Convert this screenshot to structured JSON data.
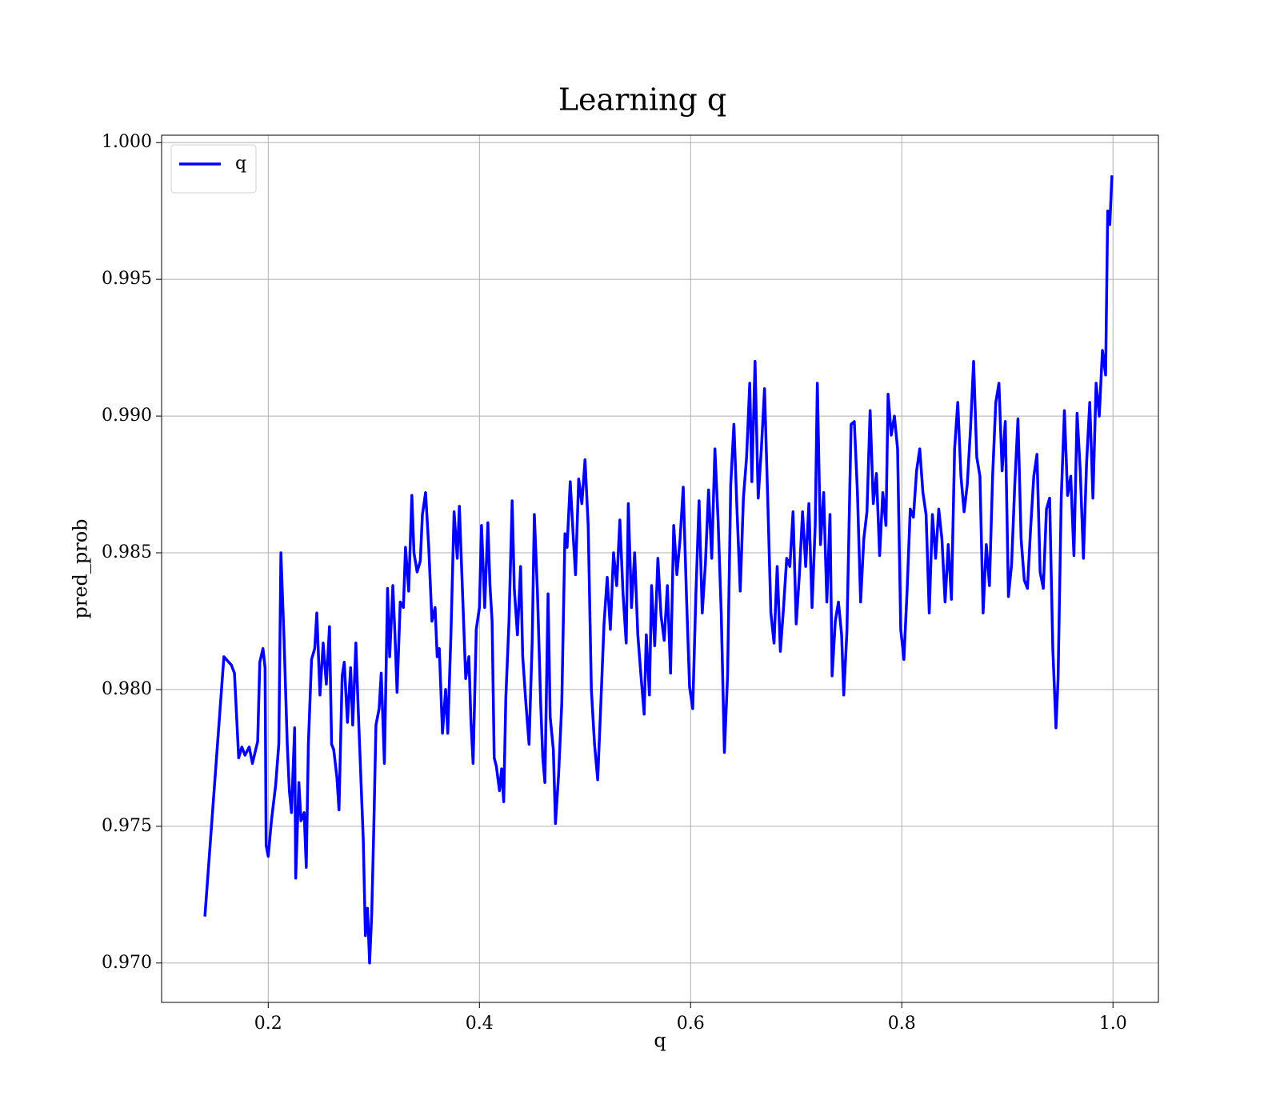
{
  "chart_data": {
    "type": "line",
    "title": "Learning q",
    "xlabel": "q",
    "ylabel": "pred_prob",
    "x": [
      0.14,
      0.158,
      0.165,
      0.168,
      0.172,
      0.175,
      0.178,
      0.182,
      0.185,
      0.19,
      0.192,
      0.195,
      0.197,
      0.198,
      0.2,
      0.203,
      0.207,
      0.21,
      0.212,
      0.215,
      0.218,
      0.22,
      0.222,
      0.225,
      0.226,
      0.229,
      0.231,
      0.234,
      0.236,
      0.238,
      0.241,
      0.244,
      0.246,
      0.249,
      0.252,
      0.255,
      0.258,
      0.26,
      0.262,
      0.265,
      0.267,
      0.27,
      0.272,
      0.275,
      0.278,
      0.28,
      0.283,
      0.285,
      0.288,
      0.29,
      0.292,
      0.294,
      0.296,
      0.298,
      0.3,
      0.302,
      0.305,
      0.307,
      0.31,
      0.313,
      0.315,
      0.318,
      0.32,
      0.322,
      0.325,
      0.328,
      0.33,
      0.333,
      0.336,
      0.338,
      0.341,
      0.344,
      0.346,
      0.349,
      0.352,
      0.355,
      0.358,
      0.36,
      0.362,
      0.365,
      0.368,
      0.37,
      0.373,
      0.376,
      0.379,
      0.381,
      0.385,
      0.387,
      0.39,
      0.392,
      0.394,
      0.397,
      0.4,
      0.402,
      0.405,
      0.408,
      0.41,
      0.412,
      0.414,
      0.416,
      0.419,
      0.421,
      0.423,
      0.425,
      0.428,
      0.431,
      0.433,
      0.436,
      0.439,
      0.441,
      0.444,
      0.447,
      0.45,
      0.452,
      0.455,
      0.458,
      0.46,
      0.462,
      0.465,
      0.467,
      0.47,
      0.472,
      0.475,
      0.478,
      0.481,
      0.483,
      0.486,
      0.489,
      0.491,
      0.494,
      0.497,
      0.5,
      0.503,
      0.506,
      0.509,
      0.512,
      0.515,
      0.518,
      0.521,
      0.524,
      0.527,
      0.53,
      0.533,
      0.536,
      0.539,
      0.541,
      0.544,
      0.547,
      0.55,
      0.553,
      0.556,
      0.558,
      0.561,
      0.563,
      0.566,
      0.569,
      0.572,
      0.575,
      0.578,
      0.581,
      0.584,
      0.587,
      0.59,
      0.593,
      0.596,
      0.599,
      0.602,
      0.605,
      0.608,
      0.611,
      0.614,
      0.617,
      0.62,
      0.623,
      0.626,
      0.629,
      0.632,
      0.635,
      0.638,
      0.641,
      0.644,
      0.647,
      0.65,
      0.653,
      0.656,
      0.658,
      0.661,
      0.664,
      0.667,
      0.67,
      0.673,
      0.676,
      0.679,
      0.682,
      0.685,
      0.688,
      0.691,
      0.694,
      0.697,
      0.7,
      0.703,
      0.706,
      0.709,
      0.712,
      0.715,
      0.718,
      0.72,
      0.723,
      0.726,
      0.729,
      0.732,
      0.734,
      0.737,
      0.74,
      0.743,
      0.745,
      0.748,
      0.752,
      0.755,
      0.758,
      0.761,
      0.764,
      0.767,
      0.77,
      0.773,
      0.776,
      0.779,
      0.782,
      0.785,
      0.787,
      0.79,
      0.793,
      0.796,
      0.799,
      0.802,
      0.805,
      0.808,
      0.811,
      0.814,
      0.817,
      0.82,
      0.823,
      0.826,
      0.829,
      0.832,
      0.835,
      0.838,
      0.841,
      0.844,
      0.847,
      0.85,
      0.853,
      0.856,
      0.859,
      0.862,
      0.865,
      0.868,
      0.871,
      0.874,
      0.877,
      0.88,
      0.883,
      0.886,
      0.889,
      0.892,
      0.895,
      0.898,
      0.901,
      0.904,
      0.907,
      0.91,
      0.913,
      0.916,
      0.919,
      0.922,
      0.925,
      0.928,
      0.931,
      0.934,
      0.937,
      0.94,
      0.943,
      0.946,
      0.948,
      0.951,
      0.954,
      0.957,
      0.96,
      0.963,
      0.966,
      0.969,
      0.972,
      0.975,
      0.978,
      0.981,
      0.984,
      0.987,
      0.99,
      0.993,
      0.995,
      0.997,
      0.999
    ],
    "series": [
      {
        "name": "q",
        "color": "#0000ff",
        "values": [
          0.9717,
          0.9812,
          0.9809,
          0.9806,
          0.9775,
          0.9779,
          0.9776,
          0.9779,
          0.9773,
          0.9781,
          0.981,
          0.9815,
          0.9808,
          0.9743,
          0.9739,
          0.9752,
          0.9765,
          0.978,
          0.985,
          0.9818,
          0.978,
          0.9763,
          0.9755,
          0.9786,
          0.9731,
          0.9766,
          0.9752,
          0.9755,
          0.9735,
          0.978,
          0.9811,
          0.9815,
          0.9828,
          0.9798,
          0.9817,
          0.9802,
          0.9823,
          0.978,
          0.9778,
          0.9768,
          0.9756,
          0.9805,
          0.981,
          0.9788,
          0.9808,
          0.9787,
          0.9817,
          0.9795,
          0.9765,
          0.9745,
          0.971,
          0.972,
          0.97,
          0.9718,
          0.975,
          0.9787,
          0.9793,
          0.9806,
          0.9773,
          0.9837,
          0.9812,
          0.9838,
          0.982,
          0.9799,
          0.9832,
          0.983,
          0.9852,
          0.9836,
          0.9871,
          0.985,
          0.9843,
          0.9847,
          0.9864,
          0.9872,
          0.9852,
          0.9825,
          0.983,
          0.9812,
          0.9815,
          0.9784,
          0.98,
          0.9784,
          0.982,
          0.9865,
          0.9848,
          0.9867,
          0.9825,
          0.9804,
          0.9812,
          0.9788,
          0.9773,
          0.9822,
          0.983,
          0.986,
          0.983,
          0.9861,
          0.9838,
          0.9825,
          0.9775,
          0.9772,
          0.9763,
          0.9771,
          0.9759,
          0.9797,
          0.9825,
          0.9869,
          0.9837,
          0.982,
          0.9845,
          0.9812,
          0.9795,
          0.978,
          0.9818,
          0.9864,
          0.9835,
          0.9795,
          0.9775,
          0.9766,
          0.9835,
          0.979,
          0.9778,
          0.9751,
          0.9769,
          0.9795,
          0.9857,
          0.9852,
          0.9876,
          0.9855,
          0.9842,
          0.9877,
          0.9868,
          0.9884,
          0.986,
          0.98,
          0.978,
          0.9767,
          0.9795,
          0.9824,
          0.9841,
          0.9822,
          0.985,
          0.9838,
          0.9862,
          0.9835,
          0.9817,
          0.9868,
          0.983,
          0.985,
          0.982,
          0.9805,
          0.9791,
          0.982,
          0.9798,
          0.9838,
          0.9816,
          0.9848,
          0.9827,
          0.9818,
          0.9838,
          0.9806,
          0.986,
          0.9842,
          0.9855,
          0.9874,
          0.9835,
          0.9801,
          0.9793,
          0.9835,
          0.9869,
          0.9828,
          0.9846,
          0.9873,
          0.9848,
          0.9888,
          0.9862,
          0.9828,
          0.9777,
          0.9805,
          0.9875,
          0.9897,
          0.9865,
          0.9836,
          0.987,
          0.9885,
          0.9912,
          0.9876,
          0.992,
          0.987,
          0.9888,
          0.991,
          0.987,
          0.9828,
          0.9817,
          0.9845,
          0.9814,
          0.983,
          0.9848,
          0.9845,
          0.9865,
          0.9824,
          0.9842,
          0.9865,
          0.9845,
          0.9868,
          0.983,
          0.986,
          0.9912,
          0.9853,
          0.9872,
          0.9832,
          0.9864,
          0.9805,
          0.9825,
          0.9832,
          0.982,
          0.9798,
          0.9821,
          0.9897,
          0.9898,
          0.9872,
          0.9832,
          0.9855,
          0.9865,
          0.9902,
          0.9868,
          0.9879,
          0.9849,
          0.9872,
          0.986,
          0.9908,
          0.9893,
          0.99,
          0.9888,
          0.9822,
          0.9811,
          0.9836,
          0.9866,
          0.9863,
          0.988,
          0.9888,
          0.9872,
          0.9864,
          0.9828,
          0.9864,
          0.9848,
          0.9866,
          0.9855,
          0.9832,
          0.9853,
          0.9833,
          0.9888,
          0.9905,
          0.9878,
          0.9865,
          0.9875,
          0.9895,
          0.992,
          0.9885,
          0.9878,
          0.9828,
          0.9853,
          0.9838,
          0.9878,
          0.9905,
          0.9912,
          0.988,
          0.9898,
          0.9834,
          0.9846,
          0.9875,
          0.9899,
          0.9855,
          0.984,
          0.9837,
          0.9859,
          0.9878,
          0.9886,
          0.9843,
          0.9837,
          0.9866,
          0.987,
          0.9815,
          0.9786,
          0.9804,
          0.987,
          0.9902,
          0.9871,
          0.9878,
          0.9849,
          0.9901,
          0.988,
          0.9848,
          0.9883,
          0.9905,
          0.987,
          0.9912,
          0.99,
          0.9924,
          0.9915,
          0.9975,
          0.997,
          0.9988
        ]
      }
    ],
    "xlim": [
      0.099,
      1.043
    ],
    "ylim": [
      0.96856,
      1.00027
    ],
    "xticks": [
      0.2,
      0.4,
      0.6,
      0.8,
      {
        "value": 1.0,
        "label": "1.0"
      }
    ],
    "yticks": [
      {
        "value": 0.97,
        "label": "0.970"
      },
      0.975,
      {
        "value": 0.98,
        "label": "0.980"
      },
      0.985,
      {
        "value": 0.99,
        "label": "0.990"
      },
      0.995,
      {
        "value": 1.0,
        "label": "1.000"
      }
    ],
    "grid": true,
    "legend": "upper left"
  }
}
